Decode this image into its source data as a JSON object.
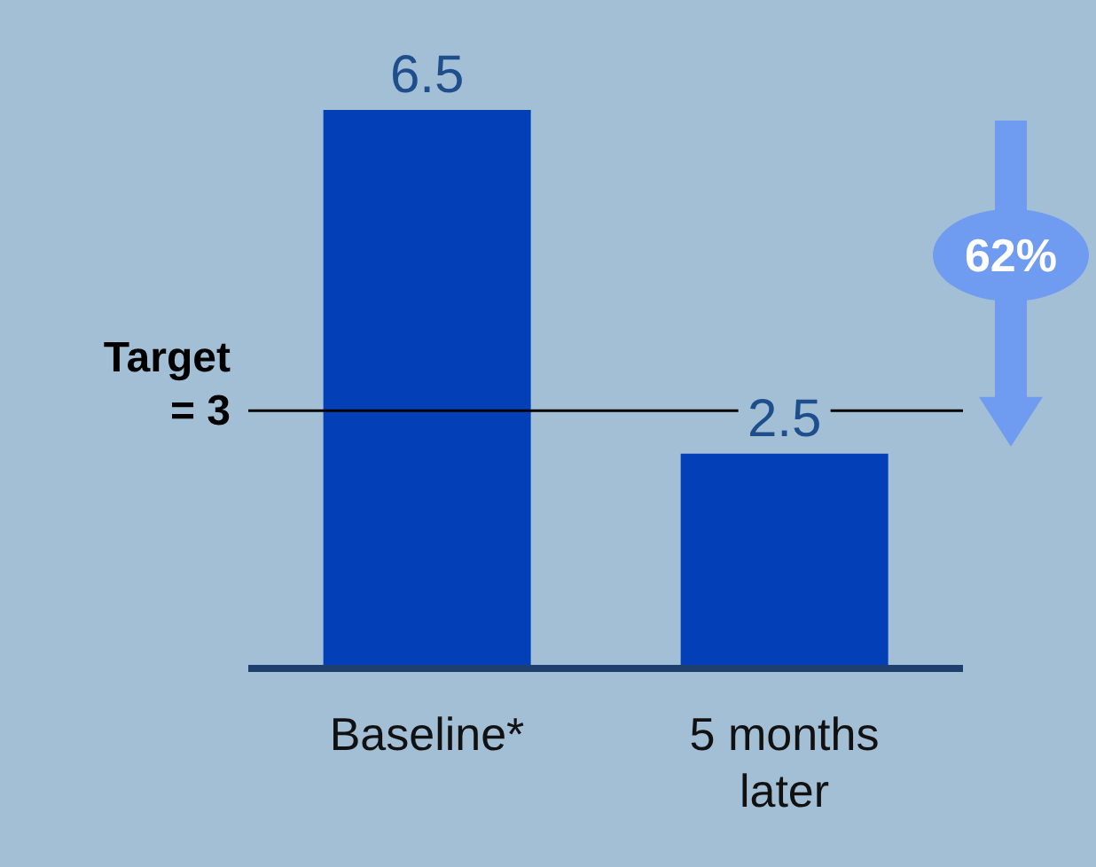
{
  "chart_data": {
    "type": "bar",
    "categories": [
      "Baseline*",
      "5 months later"
    ],
    "values": [
      6.5,
      2.5
    ],
    "color": "#0340b8",
    "data_labels": true,
    "ref_lines": [
      {
        "axis": "y",
        "value": 3,
        "label": "Target = 3",
        "color": "#000000"
      }
    ],
    "annotations": [
      "62%"
    ]
  }
}
